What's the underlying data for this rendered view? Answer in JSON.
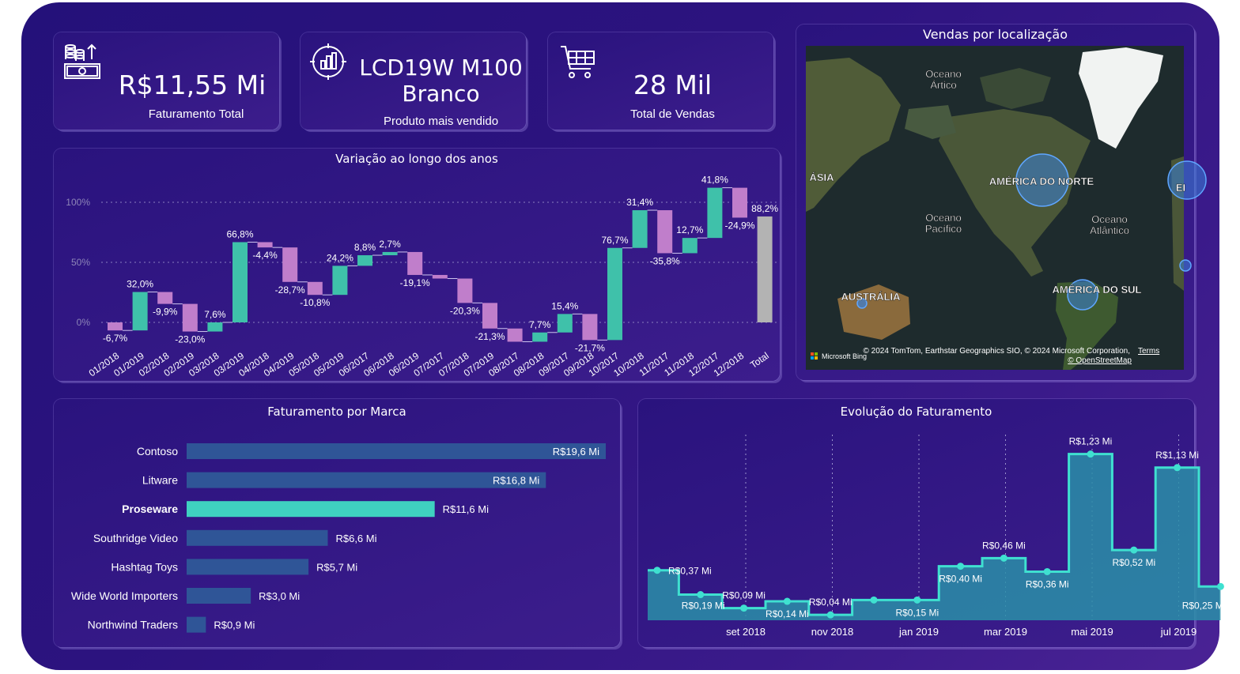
{
  "kpis": {
    "revenue": {
      "value": "R$11,55 Mi",
      "label": "Faturamento Total",
      "icon": "money-stack-icon"
    },
    "product": {
      "value_line1": "LCD19W M100",
      "value_line2": "Branco",
      "label": "Produto mais vendido",
      "icon": "bar-chart-target-icon"
    },
    "sales": {
      "value": "28 Mil",
      "label": "Total de Vendas",
      "icon": "shopping-cart-icon"
    }
  },
  "map": {
    "title": "Vendas por localização",
    "labels": {
      "arctic": "Oceano\nÁrtico",
      "asia": "ÁSIA",
      "north_america": "AMÉRICA DO NORTE",
      "pacific": "Oceano\nPacífico",
      "atlantic": "Oceano\nAtlântico",
      "south_america": "AMÉRICA DO SUL",
      "australia": "AUSTRÁLIA",
      "europe_partial": "EI"
    },
    "attribution": "© 2024 TomTom, Earthstar Geographics SIO, © 2024 Microsoft Corporation,",
    "terms": "Terms",
    "osm": "© OpenStreetMap",
    "bing": "Microsoft Bing"
  },
  "chart_data": [
    {
      "type": "waterfall",
      "title": "Variação ao longo dos anos",
      "ytick_labels": [
        "0%",
        "50%",
        "100%"
      ],
      "categories": [
        "01/2018",
        "01/2019",
        "02/2018",
        "02/2019",
        "03/2018",
        "03/2019",
        "04/2018",
        "04/2019",
        "05/2018",
        "05/2019",
        "06/2017",
        "06/2018",
        "06/2019",
        "07/2017",
        "07/2018",
        "07/2019",
        "08/2017",
        "08/2018",
        "09/2017",
        "09/2018",
        "10/2017",
        "10/2018",
        "11/2017",
        "11/2018",
        "12/2017",
        "12/2018",
        "Total"
      ],
      "changes": [
        -6.7,
        32.0,
        -9.9,
        -23.0,
        7.6,
        66.8,
        -4.4,
        -28.7,
        -10.8,
        24.2,
        8.8,
        2.7,
        -19.1,
        -3.0,
        -20.3,
        -21.3,
        -11.0,
        7.7,
        15.4,
        -21.7,
        76.7,
        31.4,
        -35.8,
        12.7,
        41.8,
        -24.9,
        88.2
      ],
      "labels": [
        "-6,7%",
        "32,0%",
        "-9,9%",
        "-23,0%",
        "7,6%",
        "66,8%",
        "-4,4%",
        "-28,7%",
        "-10,8%",
        "24,2%",
        "8,8%",
        "2,7%",
        "-19,1%",
        "",
        "-20,3%",
        "-21,3%",
        "",
        "7,7%",
        "15,4%",
        "-21,7%",
        "76,7%",
        "31,4%",
        "-35,8%",
        "12,7%",
        "41,8%",
        "-24,9%",
        "88,2%"
      ],
      "colors": {
        "increase": "#3fc1aa",
        "decrease": "#c07ecb",
        "total": "#b3b3b3"
      }
    },
    {
      "type": "bar",
      "orientation": "horizontal",
      "title": "Faturamento por Marca",
      "categories": [
        "Contoso",
        "Litware",
        "Proseware",
        "Southridge Video",
        "Hashtag Toys",
        "Wide World Importers",
        "Northwind Traders"
      ],
      "values": [
        19.6,
        16.8,
        11.6,
        6.6,
        5.7,
        3.0,
        0.9
      ],
      "value_labels": [
        "R$19,6 Mi",
        "R$16,8 Mi",
        "R$11,6 Mi",
        "R$6,6 Mi",
        "R$5,7 Mi",
        "R$3,0 Mi",
        "R$0,9 Mi"
      ],
      "highlighted": "Proseware",
      "colors": {
        "default": "#2f5597",
        "highlight": "#3fd1c0"
      }
    },
    {
      "type": "area",
      "title": "Evolução do Faturamento",
      "x_labels": [
        "set 2018",
        "nov 2018",
        "jan 2019",
        "mar 2019",
        "mai 2019",
        "jul 2019"
      ],
      "values": [
        0.37,
        0.19,
        0.09,
        0.14,
        0.04,
        0.15,
        0.15,
        0.4,
        0.46,
        0.36,
        1.23,
        0.52,
        1.13,
        0.25
      ],
      "value_labels": [
        {
          "i": 0,
          "text": "R$0,37 Mi"
        },
        {
          "i": 1,
          "text": "R$0,19 Mi"
        },
        {
          "i": 2,
          "text": "R$0,09 Mi"
        },
        {
          "i": 3,
          "text": "R$0,14 Mi"
        },
        {
          "i": 4,
          "text": "R$0,04 Mi"
        },
        {
          "i": 6,
          "text": "R$0,15 Mi"
        },
        {
          "i": 7,
          "text": "R$0,40 Mi"
        },
        {
          "i": 8,
          "text": "R$0,46 Mi"
        },
        {
          "i": 9,
          "text": "R$0,36 Mi"
        },
        {
          "i": 10,
          "text": "R$1,23 Mi"
        },
        {
          "i": 11,
          "text": "R$0,52 Mi"
        },
        {
          "i": 12,
          "text": "R$1,13 Mi"
        },
        {
          "i": 13,
          "text": "R$0,25 Mi"
        }
      ],
      "colors": {
        "line": "#3fe0d0",
        "fill": "#2a8fa8"
      }
    }
  ]
}
